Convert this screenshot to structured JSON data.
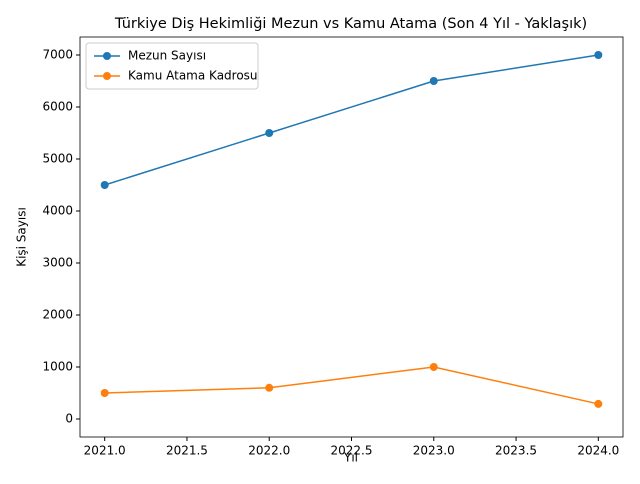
{
  "chart_data": {
    "type": "line",
    "title": "Türkiye Diş Hekimliği Mezun vs Kamu Atama (Son 4 Yıl - Yaklaşık)",
    "x_label": "Yıl",
    "y_label": "Kişi Sayısı",
    "x": [
      2021,
      2022,
      2023,
      2024
    ],
    "series": [
      {
        "name": "Mezun Sayısı",
        "color": "#1f77b4",
        "values": [
          4500,
          5500,
          6500,
          7000
        ]
      },
      {
        "name": "Kamu Atama Kadrosu",
        "color": "#ff7f0e",
        "values": [
          500,
          600,
          1000,
          290
        ]
      }
    ],
    "xlim": [
      2020.85,
      2024.15
    ],
    "xticks": [
      {
        "value": 2021,
        "label": "2021.0"
      },
      {
        "value": 2021.5,
        "label": "2021.5"
      },
      {
        "value": 2022,
        "label": "2022.0"
      },
      {
        "value": 2022.5,
        "label": "2022.5"
      },
      {
        "value": 2023,
        "label": "2023.0"
      },
      {
        "value": 2023.5,
        "label": "2023.5"
      },
      {
        "value": 2024,
        "label": "2024.0"
      }
    ],
    "ylim": [
      -346,
      7346
    ],
    "yticks": [
      0,
      1000,
      2000,
      3000,
      4000,
      5000,
      6000,
      7000
    ],
    "legend": "upper left",
    "grid": false
  }
}
